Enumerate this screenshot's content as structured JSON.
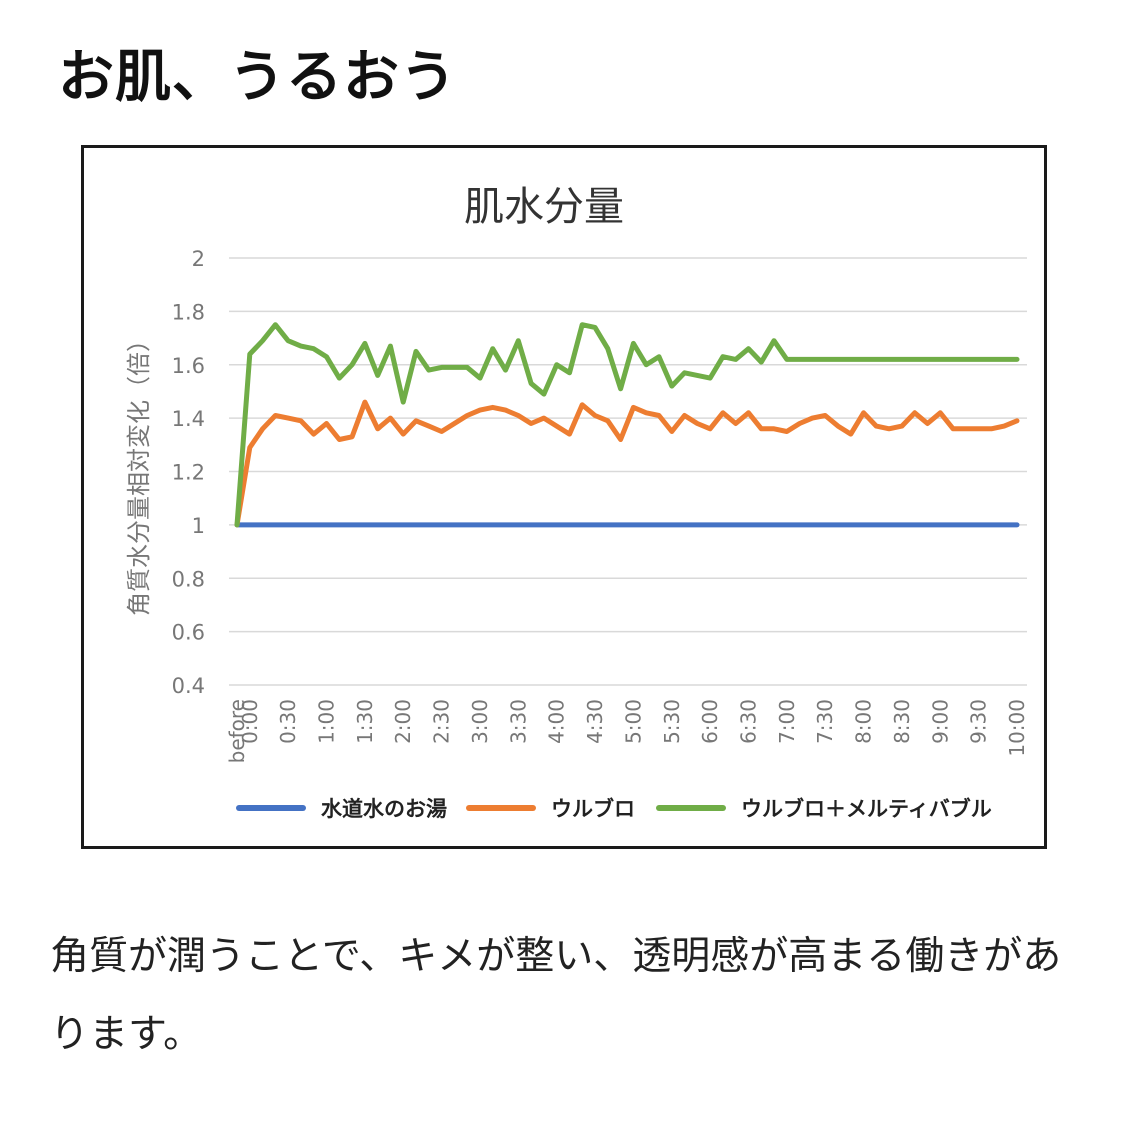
{
  "page": {
    "heading": "お肌、うるおう",
    "caption": "角質が潤うことで、キメが整い、透明感が高まる働きがあります。"
  },
  "chart_data": {
    "type": "line",
    "title": "肌水分量",
    "ylabel": "角質水分量相対変化（倍）",
    "xlabel": "",
    "ylim": [
      0.4,
      2
    ],
    "yticks": [
      "0.4",
      "0.6",
      "0.8",
      "1",
      "1.2",
      "1.4",
      "1.6",
      "1.8",
      "2"
    ],
    "grid": true,
    "legend_position": "bottom",
    "x": [
      "before",
      "0:00",
      "0:10",
      "0:20",
      "0:30",
      "0:40",
      "0:50",
      "1:00",
      "1:10",
      "1:20",
      "1:30",
      "1:40",
      "1:50",
      "2:00",
      "2:10",
      "2:20",
      "2:30",
      "2:40",
      "2:50",
      "3:00",
      "3:10",
      "3:20",
      "3:30",
      "3:40",
      "3:50",
      "4:00",
      "4:10",
      "4:20",
      "4:30",
      "4:40",
      "4:50",
      "5:00",
      "5:10",
      "5:20",
      "5:30",
      "5:40",
      "5:50",
      "6:00",
      "6:10",
      "6:20",
      "6:30",
      "6:40",
      "6:50",
      "7:00",
      "7:10",
      "7:20",
      "7:30",
      "7:40",
      "7:50",
      "8:00",
      "8:10",
      "8:20",
      "8:30",
      "8:40",
      "8:50",
      "9:00",
      "9:10",
      "9:20",
      "9:30",
      "9:40",
      "9:50",
      "10:00"
    ],
    "xtick_labels": [
      "before",
      "0:00",
      "0:30",
      "1:00",
      "1:30",
      "2:00",
      "2:30",
      "3:00",
      "3:30",
      "4:00",
      "4:30",
      "5:00",
      "5:30",
      "6:00",
      "6:30",
      "7:00",
      "7:30",
      "8:00",
      "8:30",
      "9:00",
      "9:30",
      "10:00"
    ],
    "series": [
      {
        "name": "水道水のお湯",
        "color": "#4472c4",
        "values": [
          1,
          1,
          1,
          1,
          1,
          1,
          1,
          1,
          1,
          1,
          1,
          1,
          1,
          1,
          1,
          1,
          1,
          1,
          1,
          1,
          1,
          1,
          1,
          1,
          1,
          1,
          1,
          1,
          1,
          1,
          1,
          1,
          1,
          1,
          1,
          1,
          1,
          1,
          1,
          1,
          1,
          1,
          1,
          1,
          1,
          1,
          1,
          1,
          1,
          1,
          1,
          1,
          1,
          1,
          1,
          1,
          1,
          1,
          1,
          1,
          1,
          1
        ]
      },
      {
        "name": "ウルブロ",
        "color": "#ed7d31",
        "values": [
          1.0,
          1.29,
          1.36,
          1.41,
          1.4,
          1.39,
          1.34,
          1.38,
          1.32,
          1.33,
          1.46,
          1.36,
          1.4,
          1.34,
          1.39,
          1.37,
          1.35,
          1.38,
          1.41,
          1.43,
          1.44,
          1.43,
          1.41,
          1.38,
          1.4,
          1.37,
          1.34,
          1.45,
          1.41,
          1.39,
          1.32,
          1.44,
          1.42,
          1.41,
          1.35,
          1.41,
          1.38,
          1.36,
          1.42,
          1.38,
          1.42,
          1.36,
          1.36,
          1.35,
          1.38,
          1.4,
          1.41,
          1.37,
          1.34,
          1.42,
          1.37,
          1.36,
          1.37,
          1.42,
          1.38,
          1.42,
          1.36,
          1.36,
          1.36,
          1.36,
          1.37,
          1.39
        ]
      },
      {
        "name": "ウルブロ＋メルティバブル",
        "color": "#70ad47",
        "values": [
          1.0,
          1.64,
          1.69,
          1.75,
          1.69,
          1.67,
          1.66,
          1.63,
          1.55,
          1.6,
          1.68,
          1.56,
          1.67,
          1.46,
          1.65,
          1.58,
          1.59,
          1.59,
          1.59,
          1.55,
          1.66,
          1.58,
          1.69,
          1.53,
          1.49,
          1.6,
          1.57,
          1.75,
          1.74,
          1.66,
          1.51,
          1.68,
          1.6,
          1.63,
          1.52,
          1.57,
          1.56,
          1.55,
          1.63,
          1.62,
          1.66,
          1.61,
          1.69,
          1.62,
          1.62,
          1.62,
          1.62,
          1.62,
          1.62,
          1.62,
          1.62,
          1.62,
          1.62,
          1.62,
          1.62,
          1.62,
          1.62,
          1.62,
          1.62,
          1.62,
          1.62,
          1.62
        ]
      }
    ]
  }
}
